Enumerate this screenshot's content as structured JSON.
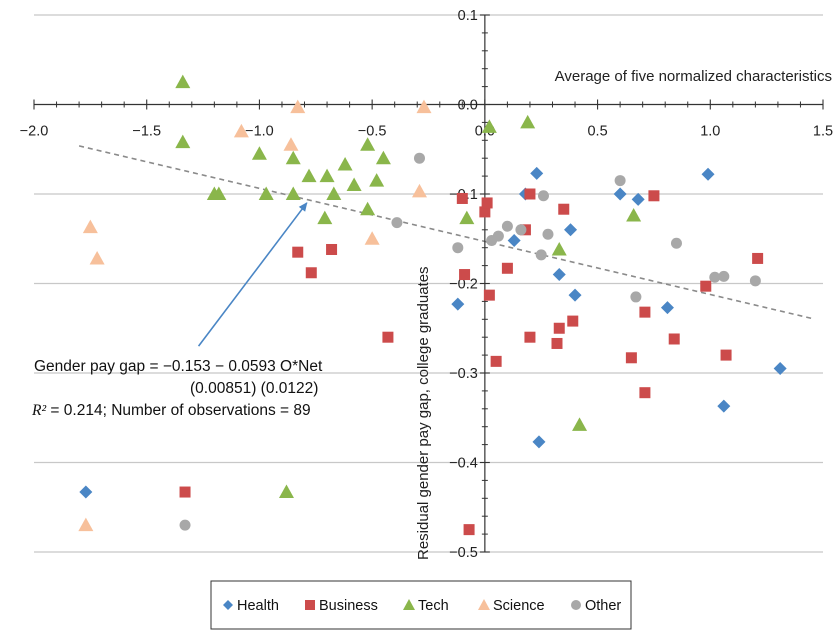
{
  "chart_data": {
    "type": "scatter",
    "title": "",
    "xlabel": "Average of five normalized characteristics",
    "ylabel": "Residual gender pay gap, college graduates",
    "xlim": [
      -2.0,
      1.5
    ],
    "ylim": [
      -0.5,
      0.1
    ],
    "x_ticks": [
      "−2.0",
      "−1.5",
      "−1.0",
      "−0.5",
      "0.0",
      "0.5",
      "1.0",
      "1.5"
    ],
    "x_tick_values": [
      -2.0,
      -1.5,
      -1.0,
      -0.5,
      0.0,
      0.5,
      1.0,
      1.5
    ],
    "y_ticks": [
      "0.1",
      "0.0",
      "−0.1",
      "−0.2",
      "−0.3",
      "−0.4",
      "−0.5"
    ],
    "y_tick_values": [
      0.1,
      0.0,
      -0.1,
      -0.2,
      -0.3,
      -0.4,
      -0.5
    ],
    "grid": true,
    "trendline": {
      "intercept": -0.153,
      "slope": -0.0593,
      "x_range": [
        -1.8,
        1.45
      ],
      "style": "dashed"
    },
    "annotation": {
      "line1": "Gender pay gap = −0.153 − 0.0593 O*Net",
      "line2": "(0.00851) (0.0122)",
      "line3_r2": "R²",
      "line3_rest": " = 0.214; Number of observations = 89",
      "arrow_from": [
        -1.27,
        -0.27
      ],
      "arrow_to": [
        -0.79,
        -0.11
      ]
    },
    "legend_position": "bottom",
    "series": [
      {
        "name": "Health",
        "marker": "diamond",
        "color": "#4a86c5",
        "points": [
          [
            0.23,
            -0.077
          ],
          [
            0.18,
            -0.1
          ],
          [
            -0.12,
            -0.223
          ],
          [
            0.6,
            -0.1
          ],
          [
            0.68,
            -0.106
          ],
          [
            0.38,
            -0.14
          ],
          [
            0.99,
            -0.078
          ],
          [
            0.13,
            -0.152
          ],
          [
            0.33,
            -0.19
          ],
          [
            0.4,
            -0.213
          ],
          [
            0.81,
            -0.227
          ],
          [
            0.24,
            -0.377
          ],
          [
            1.06,
            -0.337
          ],
          [
            1.31,
            -0.295
          ]
        ]
      },
      {
        "name": "Business",
        "marker": "square",
        "color": "#cc4b4b",
        "points": [
          [
            -0.1,
            -0.105
          ],
          [
            0.0,
            -0.12
          ],
          [
            0.01,
            -0.11
          ],
          [
            0.18,
            -0.14
          ],
          [
            0.2,
            -0.1
          ],
          [
            0.35,
            -0.117
          ],
          [
            0.75,
            -0.102
          ],
          [
            -0.83,
            -0.165
          ],
          [
            -0.68,
            -0.162
          ],
          [
            -0.77,
            -0.188
          ],
          [
            -0.09,
            -0.19
          ],
          [
            0.1,
            -0.183
          ],
          [
            0.02,
            -0.213
          ],
          [
            0.98,
            -0.203
          ],
          [
            1.21,
            -0.172
          ],
          [
            -0.43,
            -0.26
          ],
          [
            0.2,
            -0.26
          ],
          [
            0.33,
            -0.25
          ],
          [
            0.39,
            -0.242
          ],
          [
            0.71,
            -0.232
          ],
          [
            0.32,
            -0.267
          ],
          [
            0.05,
            -0.287
          ],
          [
            0.65,
            -0.283
          ],
          [
            0.84,
            -0.262
          ],
          [
            1.07,
            -0.28
          ],
          [
            0.71,
            -0.322
          ],
          [
            -0.07,
            -0.475
          ]
        ]
      },
      {
        "name": "Tech",
        "marker": "triangle",
        "color": "#8ab64b",
        "points": [
          [
            -1.34,
            0.025
          ],
          [
            0.19,
            -0.02
          ],
          [
            0.02,
            -0.025
          ],
          [
            -1.34,
            -0.042
          ],
          [
            -1.0,
            -0.055
          ],
          [
            -0.52,
            -0.045
          ],
          [
            -0.85,
            -0.06
          ],
          [
            -0.45,
            -0.06
          ],
          [
            -0.62,
            -0.067
          ],
          [
            -0.78,
            -0.08
          ],
          [
            -0.7,
            -0.08
          ],
          [
            -0.58,
            -0.09
          ],
          [
            -0.48,
            -0.085
          ],
          [
            -0.85,
            -0.1
          ],
          [
            -0.67,
            -0.1
          ],
          [
            -1.2,
            -0.1
          ],
          [
            -1.18,
            -0.1
          ],
          [
            -0.97,
            -0.1
          ],
          [
            -0.52,
            -0.117
          ],
          [
            -0.71,
            -0.127
          ],
          [
            -0.08,
            -0.127
          ],
          [
            0.66,
            -0.124
          ],
          [
            0.33,
            -0.162
          ],
          [
            0.42,
            -0.358
          ]
        ]
      },
      {
        "name": "Science",
        "marker": "triangle",
        "color": "#f7c09b",
        "points": [
          [
            -0.83,
            -0.003
          ],
          [
            -0.27,
            -0.003
          ],
          [
            -1.08,
            -0.03
          ],
          [
            -0.86,
            -0.045
          ],
          [
            -0.29,
            -0.097
          ],
          [
            -1.75,
            -0.137
          ],
          [
            -1.72,
            -0.172
          ],
          [
            -0.5,
            -0.15
          ]
        ]
      },
      {
        "name": "Other",
        "marker": "circle",
        "color": "#a8a8a8",
        "points": [
          [
            -0.29,
            -0.06
          ],
          [
            0.6,
            -0.085
          ],
          [
            0.26,
            -0.102
          ],
          [
            -0.39,
            -0.132
          ],
          [
            0.1,
            -0.136
          ],
          [
            0.16,
            -0.14
          ],
          [
            0.06,
            -0.147
          ],
          [
            0.03,
            -0.152
          ],
          [
            0.85,
            -0.155
          ],
          [
            -0.12,
            -0.16
          ],
          [
            0.25,
            -0.168
          ],
          [
            0.28,
            -0.145
          ],
          [
            1.02,
            -0.193
          ],
          [
            1.06,
            -0.192
          ],
          [
            1.2,
            -0.197
          ],
          [
            0.67,
            -0.215
          ]
        ]
      }
    ],
    "outside_markers": [
      {
        "series": "Health",
        "marker": "diamond",
        "color": "#4a86c5",
        "x": -1.77,
        "y": -0.433
      },
      {
        "series": "Business",
        "marker": "square",
        "color": "#cc4b4b",
        "x": -1.33,
        "y": -0.433
      },
      {
        "series": "Tech",
        "marker": "triangle",
        "color": "#8ab64b",
        "x": -0.88,
        "y": -0.433
      },
      {
        "series": "Science",
        "marker": "triangle",
        "color": "#f7c09b",
        "x": -1.77,
        "y": -0.47
      },
      {
        "series": "Other",
        "marker": "circle",
        "color": "#a8a8a8",
        "x": -1.33,
        "y": -0.47
      }
    ]
  }
}
